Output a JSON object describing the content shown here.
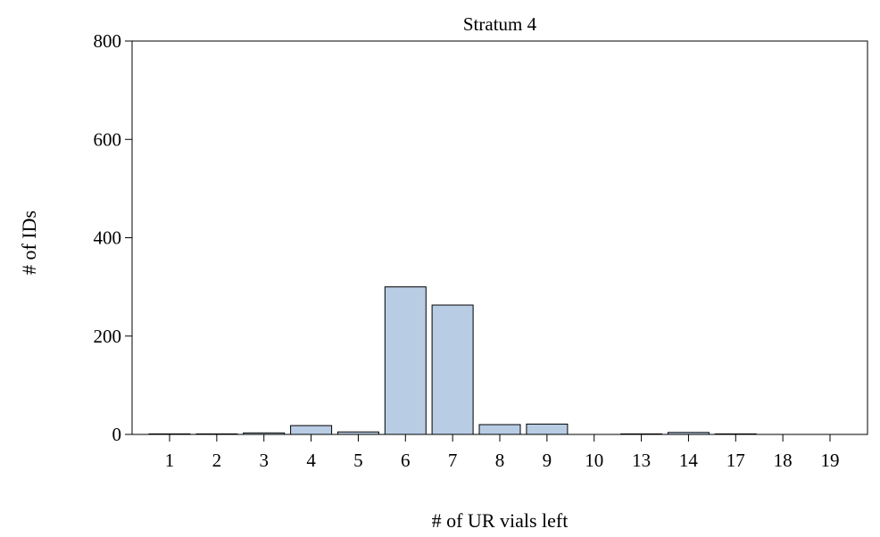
{
  "chart_data": {
    "type": "bar",
    "title": "Stratum 4",
    "xlabel": "# of UR vials left",
    "ylabel": "# of IDs",
    "categories": [
      "1",
      "2",
      "3",
      "4",
      "5",
      "6",
      "7",
      "8",
      "9",
      "10",
      "13",
      "14",
      "17",
      "18",
      "19"
    ],
    "values": [
      1,
      1,
      3,
      18,
      5,
      300,
      263,
      20,
      21,
      0,
      1,
      4,
      1,
      0,
      0
    ],
    "ylim": [
      0,
      800
    ],
    "yticks": [
      "0",
      "200",
      "400",
      "600",
      "800"
    ],
    "grid": false,
    "bar_color": "#b8cce4"
  }
}
